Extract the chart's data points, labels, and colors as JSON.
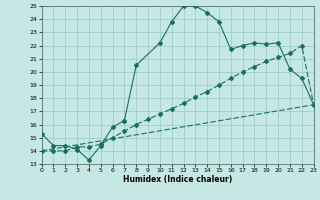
{
  "xlabel": "Humidex (Indice chaleur)",
  "xlim": [
    0,
    23
  ],
  "ylim": [
    13,
    25
  ],
  "xticks": [
    0,
    1,
    2,
    3,
    4,
    5,
    6,
    7,
    8,
    9,
    10,
    11,
    12,
    13,
    14,
    15,
    16,
    17,
    18,
    19,
    20,
    21,
    22,
    23
  ],
  "yticks": [
    13,
    14,
    15,
    16,
    17,
    18,
    19,
    20,
    21,
    22,
    23,
    24,
    25
  ],
  "bg_color": "#c5e8e4",
  "grid_color": "#9dceca",
  "line_color": "#1a6e5e",
  "line1_has_gap": true,
  "line1a_x": [
    0,
    1,
    2,
    3,
    4,
    5,
    6,
    7
  ],
  "line1a_y": [
    15.3,
    14.4,
    14.4,
    14.1,
    13.3,
    14.4,
    15.8,
    16.3
  ],
  "line1b_x": [
    7,
    8,
    10,
    11,
    12,
    13,
    14,
    15,
    16,
    17,
    18,
    19,
    20,
    21,
    22,
    23
  ],
  "line1b_y": [
    16.3,
    20.5,
    22.2,
    23.8,
    25.0,
    25.0,
    24.5,
    23.8,
    21.7,
    22.0,
    22.2,
    22.1,
    22.2,
    20.2,
    19.5,
    17.5
  ],
  "line2_x": [
    0,
    1,
    2,
    3,
    4,
    5,
    6,
    7,
    8,
    9,
    10,
    11,
    12,
    13,
    14,
    15,
    16,
    17,
    18,
    19,
    20,
    21,
    22,
    23
  ],
  "line2_y": [
    14.0,
    14.0,
    14.0,
    14.3,
    14.3,
    14.5,
    15.0,
    15.5,
    16.0,
    16.4,
    16.8,
    17.2,
    17.6,
    18.1,
    18.5,
    19.0,
    19.5,
    20.0,
    20.4,
    20.8,
    21.1,
    21.4,
    22.0,
    17.5
  ],
  "line3_x": [
    0,
    23
  ],
  "line3_y": [
    14.0,
    17.5
  ]
}
